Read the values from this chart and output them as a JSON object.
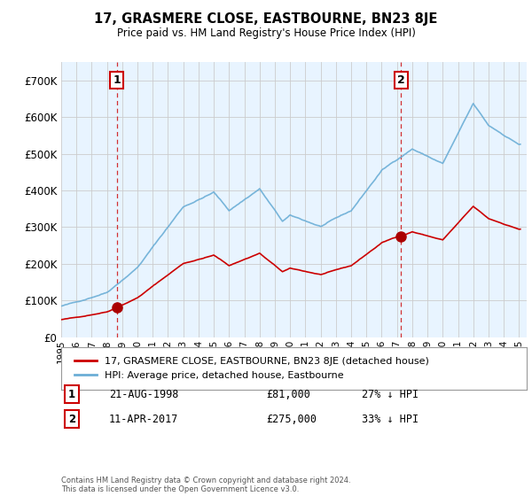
{
  "title": "17, GRASMERE CLOSE, EASTBOURNE, BN23 8JE",
  "subtitle": "Price paid vs. HM Land Registry's House Price Index (HPI)",
  "hpi_label": "HPI: Average price, detached house, Eastbourne",
  "property_label": "17, GRASMERE CLOSE, EASTBOURNE, BN23 8JE (detached house)",
  "transaction1_date": "21-AUG-1998",
  "transaction1_price": 81000,
  "transaction1_note": "27% ↓ HPI",
  "transaction2_date": "11-APR-2017",
  "transaction2_price": 275000,
  "transaction2_note": "33% ↓ HPI",
  "copyright": "Contains HM Land Registry data © Crown copyright and database right 2024.\nThis data is licensed under the Open Government Licence v3.0.",
  "hpi_color": "#6baed6",
  "property_color": "#cc0000",
  "marker_color": "#cc0000",
  "transaction1_x": 1998.645,
  "transaction2_x": 2017.274,
  "ylim": [
    0,
    750000
  ],
  "yticks": [
    0,
    100000,
    200000,
    300000,
    400000,
    500000,
    600000,
    700000
  ],
  "background_color": "#ffffff",
  "plot_bg_color": "#ddeeff",
  "grid_color": "#cccccc",
  "fill_between_color": "#cce0f0",
  "xlim_start": 1995.0,
  "xlim_end": 2025.5
}
